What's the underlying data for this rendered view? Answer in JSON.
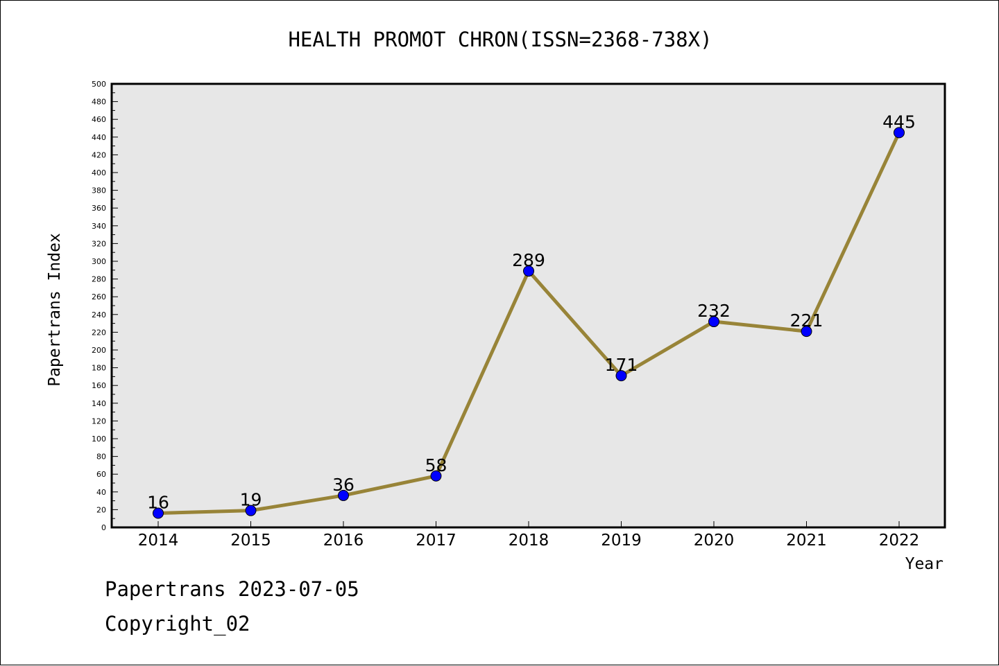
{
  "chart_data": {
    "type": "line",
    "title": "HEALTH PROMOT CHRON(ISSN=2368-738X)",
    "xlabel": "Year",
    "ylabel": "Papertrans Index",
    "categories": [
      "2014",
      "2015",
      "2016",
      "2017",
      "2018",
      "2019",
      "2020",
      "2021",
      "2022"
    ],
    "series": [
      {
        "values": [
          16,
          19,
          36,
          58,
          289,
          171,
          232,
          221,
          445
        ]
      }
    ],
    "ylim": [
      0,
      500
    ],
    "ytick_step": 20,
    "data_labels": true,
    "grid": false,
    "colors": {
      "line": "#988438",
      "marker": "#0000ff",
      "plot_bg": "#e7e7e7",
      "axis": "#000000"
    }
  },
  "footer": {
    "line1": "Papertrans 2023-07-05",
    "line2": "Copyright_02"
  }
}
